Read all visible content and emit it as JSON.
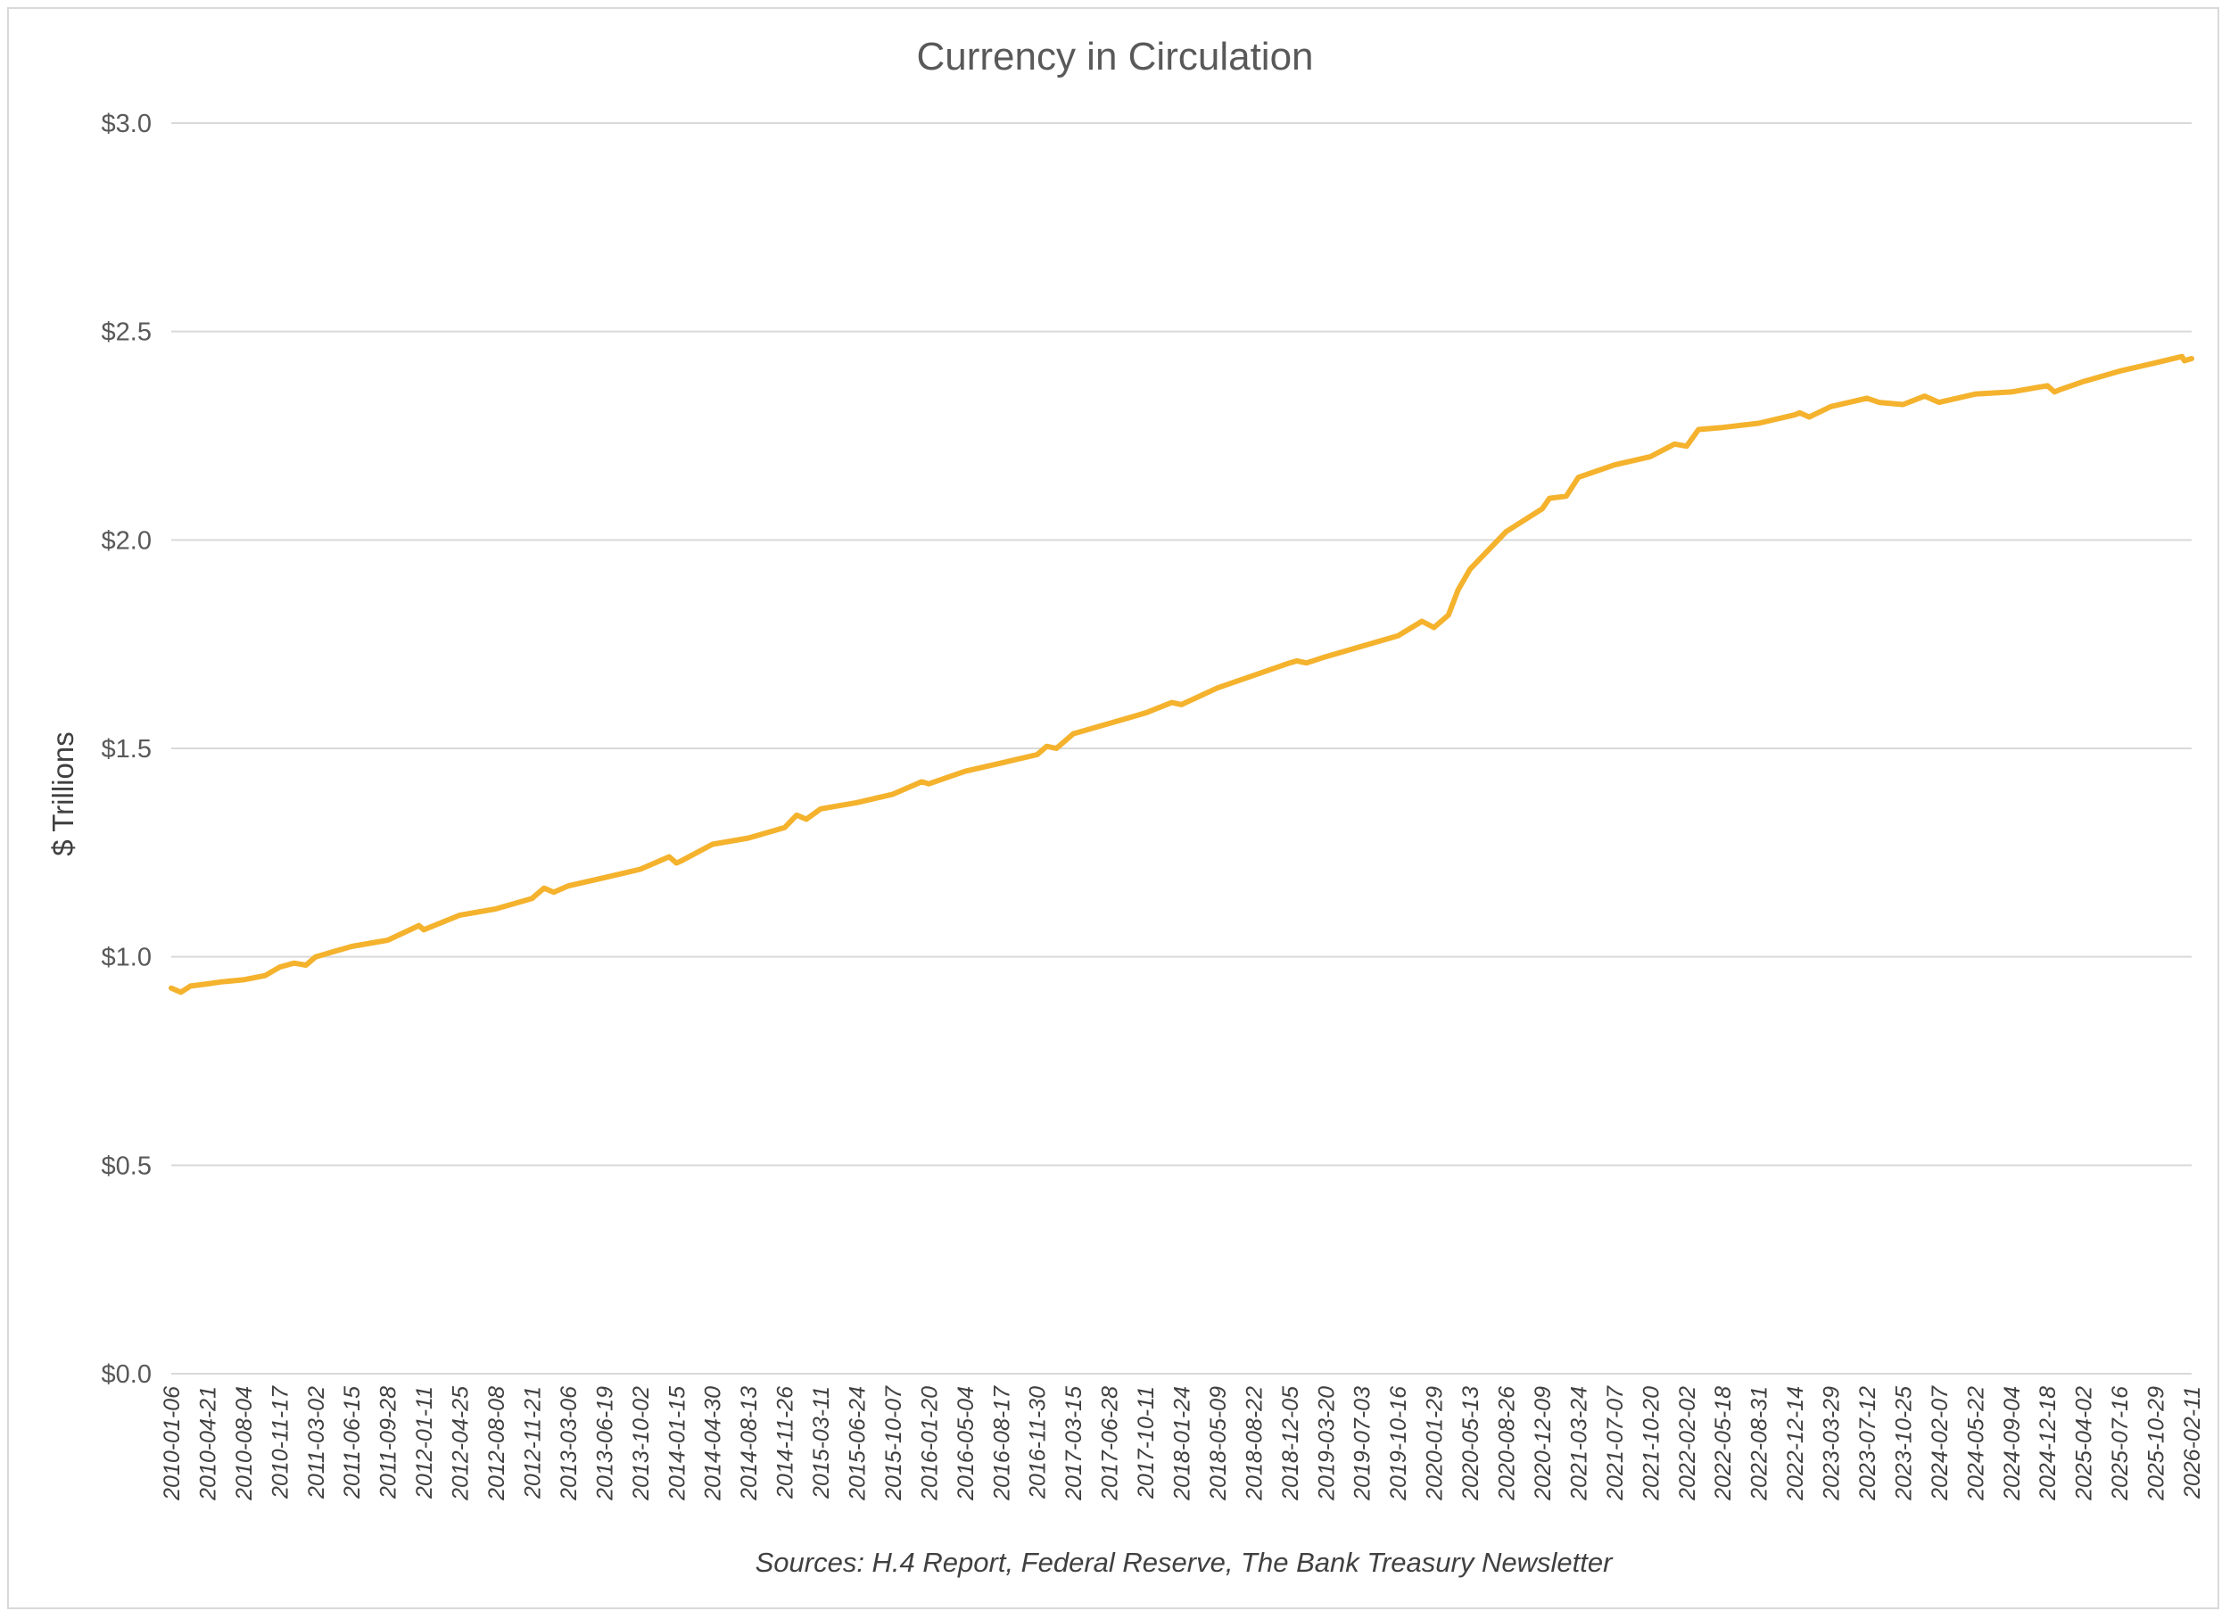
{
  "chart_data": {
    "type": "line",
    "title": "Currency in Circulation",
    "ylabel": "$ Trillions",
    "xlabel": "",
    "source": "Sources: H.4 Report, Federal Reserve, The Bank Treasury Newsletter",
    "ylim": [
      0,
      3
    ],
    "yticks": [
      "$0.0",
      "$0.5",
      "$1.0",
      "$1.5",
      "$2.0",
      "$2.5",
      "$3.0"
    ],
    "ytick_values": [
      0,
      0.5,
      1.0,
      1.5,
      2.0,
      2.5,
      3.0
    ],
    "xticks": [
      "2010-01-06",
      "2010-04-21",
      "2010-08-04",
      "2010-11-17",
      "2011-03-02",
      "2011-06-15",
      "2011-09-28",
      "2012-01-11",
      "2012-04-25",
      "2012-08-08",
      "2012-11-21",
      "2013-03-06",
      "2013-06-19",
      "2013-10-02",
      "2014-01-15",
      "2014-04-30",
      "2014-08-13",
      "2014-11-26",
      "2015-03-11",
      "2015-06-24",
      "2015-10-07",
      "2016-01-20",
      "2016-05-04",
      "2016-08-17",
      "2016-11-30",
      "2017-03-15",
      "2017-06-28",
      "2017-10-11",
      "2018-01-24",
      "2018-05-09",
      "2018-08-22",
      "2018-12-05",
      "2019-03-20",
      "2019-07-03",
      "2019-10-16",
      "2020-01-29",
      "2020-05-13",
      "2020-08-26",
      "2020-12-09",
      "2021-03-24",
      "2021-07-07",
      "2021-10-20",
      "2022-02-02",
      "2022-05-18",
      "2022-08-31",
      "2022-12-14",
      "2023-03-29",
      "2023-07-12",
      "2023-10-25",
      "2024-02-07",
      "2024-05-22",
      "2024-09-04",
      "2024-12-18",
      "2025-04-02",
      "2025-07-16",
      "2025-10-29",
      "2026-02-11"
    ],
    "grid": true,
    "legend": "none",
    "line_color": "#F4B22D",
    "series": [
      {
        "x": [
          "2010-01-06",
          "2010-02-03",
          "2010-03-03",
          "2010-04-21",
          "2010-06-02",
          "2010-08-04",
          "2010-10-06",
          "2010-11-17",
          "2010-12-29",
          "2011-02-02",
          "2011-03-02",
          "2011-06-15",
          "2011-09-28",
          "2011-12-28",
          "2012-01-11",
          "2012-04-25",
          "2012-08-08",
          "2012-11-21",
          "2012-12-26",
          "2013-01-23",
          "2013-03-06",
          "2013-06-19",
          "2013-10-02",
          "2013-12-25",
          "2014-01-15",
          "2014-01-29",
          "2014-04-30",
          "2014-08-13",
          "2014-11-26",
          "2014-12-31",
          "2015-01-28",
          "2015-03-11",
          "2015-06-24",
          "2015-10-07",
          "2015-12-30",
          "2016-01-20",
          "2016-05-04",
          "2016-08-17",
          "2016-11-30",
          "2016-12-28",
          "2017-01-25",
          "2017-03-15",
          "2017-06-28",
          "2017-10-11",
          "2017-12-27",
          "2018-01-24",
          "2018-05-09",
          "2018-08-22",
          "2018-12-05",
          "2018-12-26",
          "2019-01-23",
          "2019-03-20",
          "2019-07-03",
          "2019-10-16",
          "2019-12-25",
          "2020-01-29",
          "2020-03-11",
          "2020-04-08",
          "2020-05-13",
          "2020-08-26",
          "2020-12-09",
          "2020-12-30",
          "2021-02-17",
          "2021-03-24",
          "2021-07-07",
          "2021-10-20",
          "2021-12-29",
          "2022-02-02",
          "2022-03-09",
          "2022-05-18",
          "2022-08-31",
          "2022-12-14",
          "2022-12-28",
          "2023-01-25",
          "2023-03-29",
          "2023-07-12",
          "2023-08-16",
          "2023-10-25",
          "2023-12-27",
          "2024-02-07",
          "2024-05-22",
          "2024-09-04",
          "2024-12-18",
          "2025-01-08",
          "2025-01-22",
          "2025-04-02",
          "2025-07-16",
          "2025-10-29",
          "2026-01-14",
          "2026-01-21",
          "2026-02-11"
        ],
        "values": [
          0.925,
          0.915,
          0.93,
          0.935,
          0.94,
          0.945,
          0.955,
          0.975,
          0.985,
          0.98,
          1.0,
          1.025,
          1.04,
          1.075,
          1.065,
          1.1,
          1.115,
          1.14,
          1.165,
          1.155,
          1.17,
          1.19,
          1.21,
          1.24,
          1.225,
          1.23,
          1.27,
          1.285,
          1.31,
          1.34,
          1.33,
          1.355,
          1.37,
          1.39,
          1.42,
          1.415,
          1.445,
          1.465,
          1.485,
          1.505,
          1.5,
          1.535,
          1.56,
          1.585,
          1.61,
          1.605,
          1.645,
          1.675,
          1.705,
          1.71,
          1.705,
          1.72,
          1.745,
          1.77,
          1.805,
          1.79,
          1.82,
          1.88,
          1.93,
          2.02,
          2.075,
          2.1,
          2.105,
          2.15,
          2.18,
          2.2,
          2.23,
          2.225,
          2.265,
          2.27,
          2.28,
          2.3,
          2.305,
          2.295,
          2.32,
          2.34,
          2.33,
          2.325,
          2.345,
          2.33,
          2.35,
          2.355,
          2.37,
          2.355,
          2.36,
          2.38,
          2.405,
          2.425,
          2.44,
          2.43,
          2.435
        ]
      }
    ]
  }
}
